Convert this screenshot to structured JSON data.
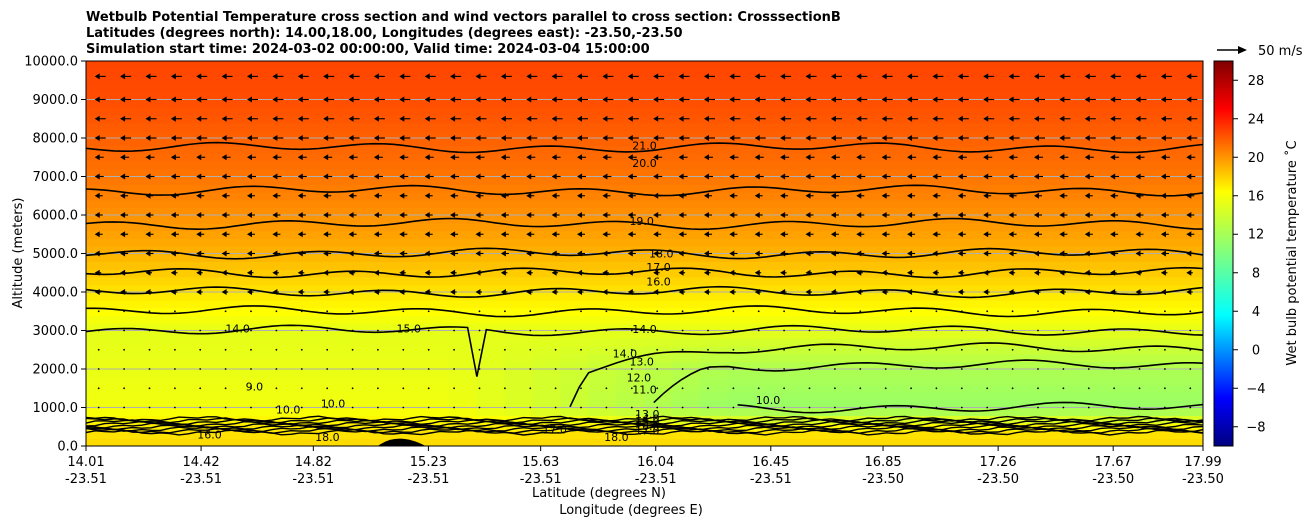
{
  "chart_data": {
    "type": "heatmap",
    "title_lines": [
      "Wetbulb Potential Temperature cross section and wind vectors parallel to cross section: CrosssectionB",
      "Latitudes (degrees north): 14.00,18.00, Longitudes (degrees east): -23.50,-23.50",
      "Simulation start time: 2024-03-02 00:00:00, Valid time: 2024-03-04 15:00:00"
    ],
    "xlabel": "Latitude (degrees N)",
    "xlabel2": "Longitude (degrees E)",
    "ylabel": "Altitude (meters)",
    "colorbar_label": "Wet bulb potential temperature ˚C",
    "x_ticks": [
      {
        "lat": "14.01",
        "lon": "-23.51",
        "value": 14.01
      },
      {
        "lat": "14.42",
        "lon": "-23.51",
        "value": 14.42
      },
      {
        "lat": "14.82",
        "lon": "-23.51",
        "value": 14.82
      },
      {
        "lat": "15.23",
        "lon": "-23.51",
        "value": 15.23
      },
      {
        "lat": "15.63",
        "lon": "-23.51",
        "value": 15.63
      },
      {
        "lat": "16.04",
        "lon": "-23.51",
        "value": 16.04
      },
      {
        "lat": "16.45",
        "lon": "-23.51",
        "value": 16.45
      },
      {
        "lat": "16.85",
        "lon": "-23.50",
        "value": 16.85
      },
      {
        "lat": "17.26",
        "lon": "-23.50",
        "value": 17.26
      },
      {
        "lat": "17.67",
        "lon": "-23.50",
        "value": 17.67
      },
      {
        "lat": "17.99",
        "lon": "-23.50",
        "value": 17.99
      }
    ],
    "y_ticks": [
      "0.0",
      "1000.0",
      "2000.0",
      "3000.0",
      "4000.0",
      "5000.0",
      "6000.0",
      "7000.0",
      "8000.0",
      "9000.0",
      "10000.0"
    ],
    "y_tick_values": [
      0,
      1000,
      2000,
      3000,
      4000,
      5000,
      6000,
      7000,
      8000,
      9000,
      10000
    ],
    "xlim": [
      14.01,
      17.99
    ],
    "ylim": [
      0,
      10000
    ],
    "colorbar_range": [
      -10,
      30
    ],
    "colorbar_ticks": [
      "−8",
      "−4",
      "0",
      "4",
      "8",
      "12",
      "16",
      "20",
      "24",
      "28"
    ],
    "colorbar_tick_values": [
      -8,
      -4,
      0,
      4,
      8,
      12,
      16,
      20,
      24,
      28
    ],
    "colormap": "jet",
    "grid": "horizontal lines",
    "quiver_key_label": "50 m/s",
    "temperature_profile": {
      "heights": [
        0,
        400,
        1000,
        2000,
        3000,
        4000,
        5000,
        6000,
        7000,
        8000,
        9000,
        10000
      ],
      "west_edge": [
        16.5,
        16.0,
        14.5,
        14.2,
        14.0,
        16.0,
        18.0,
        19.3,
        20.4,
        21.2,
        22.0,
        22.3
      ],
      "east_edge": [
        16.5,
        16.0,
        11.0,
        11.8,
        14.0,
        16.0,
        18.0,
        19.3,
        20.4,
        21.2,
        22.0,
        22.3
      ]
    },
    "contour_labels": [
      {
        "text": "21.0",
        "x": 16.0,
        "y": 7800
      },
      {
        "text": "20.0",
        "x": 16.0,
        "y": 7350
      },
      {
        "text": "19.0",
        "x": 15.99,
        "y": 5850
      },
      {
        "text": "18.0",
        "x": 16.06,
        "y": 5000
      },
      {
        "text": "17.0",
        "x": 16.05,
        "y": 4650
      },
      {
        "text": "16.0",
        "x": 16.05,
        "y": 4270
      },
      {
        "text": "14.0",
        "x": 16.0,
        "y": 3040
      },
      {
        "text": "14.0",
        "x": 14.55,
        "y": 3050
      },
      {
        "text": "15.0",
        "x": 15.16,
        "y": 3050
      },
      {
        "text": "14.0",
        "x": 15.93,
        "y": 2400
      },
      {
        "text": "13.0",
        "x": 15.99,
        "y": 2200
      },
      {
        "text": "12.0",
        "x": 15.98,
        "y": 1780
      },
      {
        "text": "11.0",
        "x": 16.0,
        "y": 1470
      },
      {
        "text": "10.0",
        "x": 16.44,
        "y": 1200
      },
      {
        "text": "9.0",
        "x": 14.61,
        "y": 1550
      },
      {
        "text": "10.0",
        "x": 14.73,
        "y": 950
      },
      {
        "text": "10.0",
        "x": 14.89,
        "y": 1100
      },
      {
        "text": "17.0",
        "x": 15.68,
        "y": 430
      },
      {
        "text": "18.0",
        "x": 15.9,
        "y": 230
      },
      {
        "text": "18.0",
        "x": 14.87,
        "y": 230
      },
      {
        "text": "16.0",
        "x": 14.45,
        "y": 300
      },
      {
        "text": "13.0",
        "x": 16.01,
        "y": 830
      },
      {
        "text": "14.0",
        "x": 16.01,
        "y": 720
      },
      {
        "text": "15.0",
        "x": 16.01,
        "y": 620
      },
      {
        "text": "16.0",
        "x": 16.01,
        "y": 520
      },
      {
        "text": "17.0",
        "x": 16.01,
        "y": 400
      }
    ],
    "wind_note": "easterly flow aloft (strongest above 7000 m), weak below"
  }
}
